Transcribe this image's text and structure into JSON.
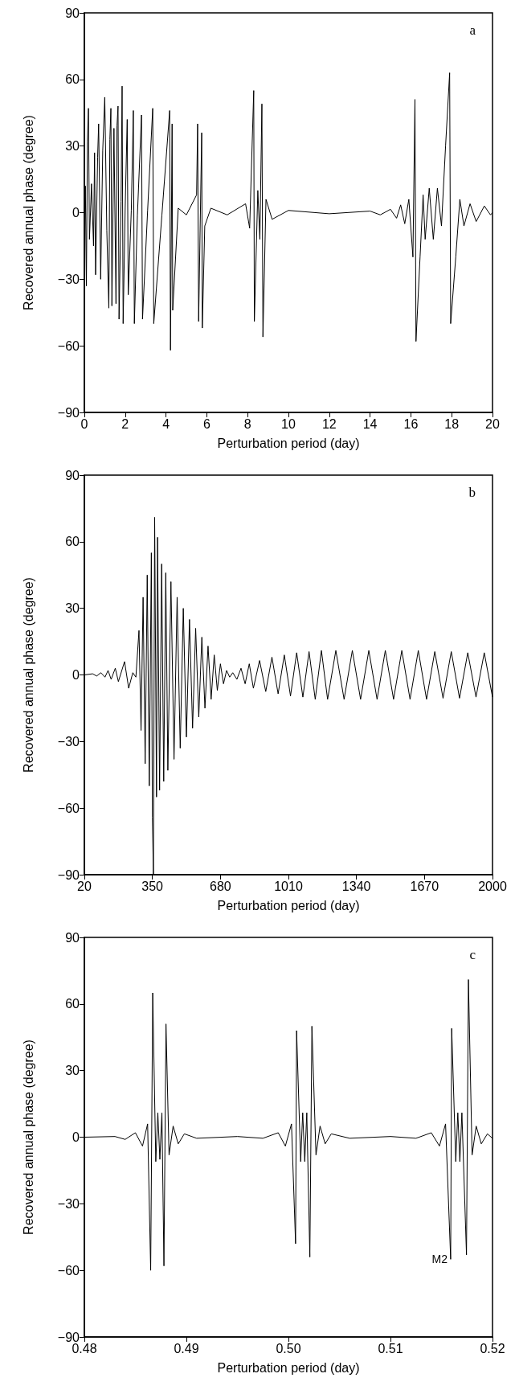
{
  "chart_data": [
    {
      "type": "line",
      "title": "a",
      "xlabel": "Perturbation period (day)",
      "ylabel": "Recovered annual phase (degree)",
      "x": [
        0,
        0.05,
        0.1,
        0.15,
        0.2,
        0.25,
        0.35,
        0.45,
        0.5,
        0.55,
        0.65,
        0.7,
        0.8,
        0.9,
        1.0,
        1.1,
        1.2,
        1.25,
        1.3,
        1.35,
        1.45,
        1.55,
        1.6,
        1.65,
        1.7,
        1.8,
        1.85,
        1.9,
        2.0,
        2.1,
        2.15,
        2.3,
        2.4,
        2.45,
        2.6,
        2.8,
        2.85,
        3.1,
        3.35,
        3.4,
        3.8,
        4.18,
        4.22,
        4.3,
        4.33,
        4.6,
        5.0,
        5.5,
        5.55,
        5.6,
        5.75,
        5.78,
        5.9,
        6.2,
        7,
        7.9,
        8.1,
        8.3,
        8.33,
        8.5,
        8.6,
        8.7,
        8.75,
        8.9,
        9.2,
        10,
        12,
        14,
        14.5,
        15,
        15.3,
        15.5,
        15.7,
        15.9,
        16.1,
        16.2,
        16.25,
        16.45,
        16.6,
        16.7,
        16.9,
        17.1,
        17.3,
        17.5,
        17.7,
        17.9,
        17.95,
        18.2,
        18.4,
        18.6,
        18.9,
        19.2,
        19.6,
        19.9,
        20
      ],
      "series": [
        {
          "color": "#000000",
          "values": [
            0,
            12,
            -33,
            32,
            47,
            -12,
            13,
            -15,
            27,
            -28,
            25,
            40,
            -30,
            28,
            52,
            -8,
            -43,
            33,
            47,
            -42,
            38,
            -41,
            39,
            48,
            -48,
            5,
            57,
            -50,
            2,
            42,
            -37,
            1,
            46,
            -50,
            -1,
            44,
            -48,
            1,
            47,
            -50,
            -1,
            46,
            -62,
            40,
            -44,
            2,
            -1,
            8,
            40,
            -49,
            36,
            -52,
            -6,
            2,
            -1,
            4,
            -7,
            55,
            -49,
            10,
            -12,
            49,
            -56,
            6,
            -3,
            1,
            -0.5,
            0.7,
            -1,
            1.5,
            -2.5,
            3.5,
            -5,
            6,
            -20,
            51,
            -58,
            -20,
            8,
            -12,
            11,
            -12,
            11,
            -6,
            30,
            63,
            -50,
            -20,
            6,
            -6,
            4,
            -4,
            3,
            -1,
            0
          ]
        }
      ],
      "xlim": [
        0,
        20
      ],
      "xticks": [
        0,
        2,
        4,
        6,
        8,
        10,
        12,
        14,
        16,
        18,
        20
      ],
      "ylim": [
        -90,
        90
      ],
      "yticks": [
        -90,
        -60,
        -30,
        0,
        30,
        60,
        90
      ],
      "grid": false,
      "marker": "none",
      "line_style": "solid"
    },
    {
      "type": "line",
      "title": "b",
      "xlabel": "Perturbation period (day)",
      "ylabel": "Recovered annual phase (degree)",
      "x": [
        20,
        60,
        80,
        100,
        120,
        135,
        150,
        170,
        185,
        215,
        235,
        255,
        270,
        285,
        295,
        305,
        315,
        325,
        335,
        345,
        350,
        355,
        361,
        370,
        375,
        385,
        395,
        405,
        415,
        425,
        440,
        455,
        470,
        485,
        500,
        515,
        530,
        545,
        560,
        575,
        590,
        605,
        620,
        635,
        650,
        665,
        680,
        695,
        710,
        725,
        740,
        760,
        780,
        800,
        820,
        840,
        870,
        900,
        930,
        960,
        990,
        1020,
        1050,
        1080,
        1110,
        1140,
        1170,
        1200,
        1240,
        1280,
        1320,
        1360,
        1400,
        1440,
        1480,
        1520,
        1560,
        1600,
        1640,
        1680,
        1720,
        1760,
        1800,
        1840,
        1880,
        1920,
        1960,
        2000
      ],
      "series": [
        {
          "color": "#000000",
          "values": [
            0,
            0.5,
            -0.5,
            1,
            -1,
            2,
            -2,
            3,
            -3,
            6,
            -6,
            1,
            -1,
            20,
            -25,
            35,
            -40,
            45,
            -50,
            55,
            -64,
            -90,
            71,
            -55,
            62,
            -52,
            50,
            -48,
            46,
            -43,
            42,
            -38,
            35,
            -33,
            30,
            -28,
            25,
            -24,
            21,
            -19,
            17,
            -15,
            13,
            -11,
            9,
            -7,
            5,
            -4,
            2,
            -1,
            1,
            -2,
            3,
            -4,
            5,
            -6,
            6.5,
            -7.5,
            8,
            -8.5,
            9,
            -9.5,
            10,
            -10,
            10.5,
            -11,
            11,
            -11,
            11,
            -11,
            11,
            -11,
            11,
            -11,
            11,
            -11,
            11,
            -11,
            11,
            -11,
            10.5,
            -10.5,
            10.5,
            -10.5,
            10,
            -10,
            10,
            -10
          ]
        }
      ],
      "xlim": [
        20,
        2000
      ],
      "xticks": [
        20,
        350,
        680,
        1010,
        1340,
        1670,
        2000
      ],
      "ylim": [
        -90,
        90
      ],
      "yticks": [
        -90,
        -60,
        -30,
        0,
        30,
        60,
        90
      ],
      "grid": false,
      "marker": "none",
      "line_style": "solid"
    },
    {
      "type": "line",
      "title": "c",
      "xlabel": "Perturbation period (day)",
      "ylabel": "Recovered annual phase (degree)",
      "x": [
        0.48,
        0.483,
        0.484,
        0.485,
        0.4857,
        0.4862,
        0.4865,
        0.4867,
        0.487,
        0.4872,
        0.4874,
        0.4876,
        0.4878,
        0.488,
        0.4883,
        0.4887,
        0.4892,
        0.4898,
        0.491,
        0.495,
        0.4975,
        0.499,
        0.4997,
        0.5003,
        0.5007,
        0.5008,
        0.5012,
        0.5014,
        0.5016,
        0.5018,
        0.5021,
        0.5023,
        0.5027,
        0.5031,
        0.5036,
        0.5042,
        0.506,
        0.51,
        0.5125,
        0.514,
        0.5148,
        0.5154,
        0.5159,
        0.516,
        0.5164,
        0.5166,
        0.5168,
        0.517,
        0.51745,
        0.51764,
        0.518,
        0.5184,
        0.5189,
        0.5195,
        0.52
      ],
      "series": [
        {
          "color": "#000000",
          "values": [
            0,
            0.3,
            -1,
            2,
            -4,
            6,
            -60,
            65,
            -11,
            11,
            -10,
            11,
            -58,
            51,
            -8,
            5,
            -3,
            1.5,
            -0.5,
            0.3,
            -0.5,
            2,
            -4,
            6,
            -48,
            48,
            -11,
            11,
            -11,
            11,
            -54,
            50,
            -8,
            5,
            -3,
            1.5,
            -0.5,
            0.3,
            -0.5,
            2,
            -4,
            6,
            -55,
            49,
            -11,
            11,
            -11,
            11,
            -53,
            71,
            -8,
            5,
            -3,
            1.5,
            -0.5
          ]
        }
      ],
      "xlim": [
        0.48,
        0.52
      ],
      "xticks": [
        0.48,
        0.49,
        {
          "value": 0.5,
          "label": "0.50"
        },
        0.51,
        0.52
      ],
      "ylim": [
        -90,
        90
      ],
      "yticks": [
        -90,
        -60,
        -30,
        0,
        30,
        60,
        90
      ],
      "grid": false,
      "marker": "none",
      "line_style": "solid",
      "annotations": [
        {
          "text": "M2",
          "x": 0.5159,
          "y": -55
        }
      ]
    }
  ]
}
